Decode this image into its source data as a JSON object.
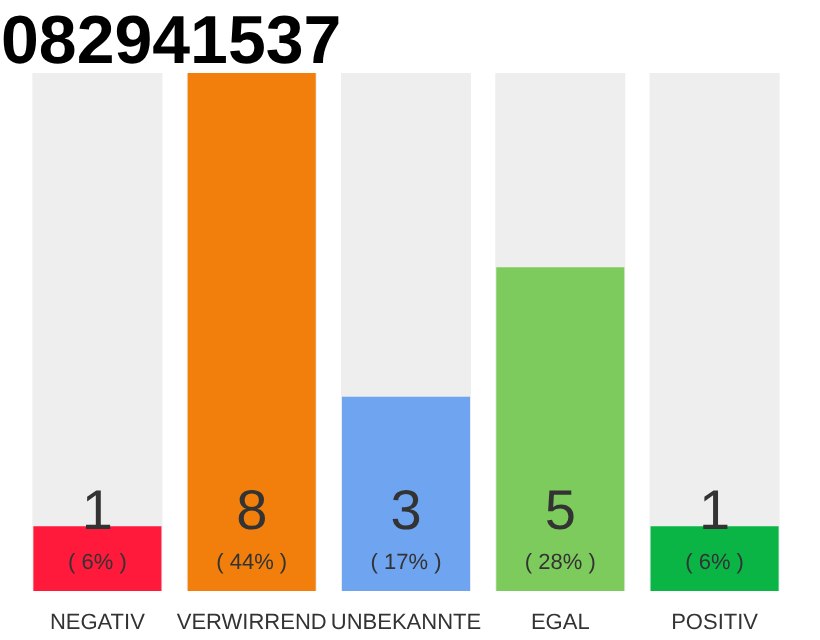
{
  "chart_data": {
    "type": "bar",
    "title": "082941537",
    "categories": [
      "NEGATIV",
      "VERWIRREND",
      "UNBEKANNTE",
      "EGAL",
      "POSITIV"
    ],
    "values": [
      1,
      8,
      3,
      5,
      1
    ],
    "colors": [
      "#ff1a3c",
      "#f27f0c",
      "#6ea4f0",
      "#7dcb5c",
      "#0ab545"
    ],
    "data_labels": true,
    "annotations": [
      "( 6% )",
      "( 44% )",
      "( 17% )",
      "( 28% )",
      "( 6% )"
    ]
  }
}
